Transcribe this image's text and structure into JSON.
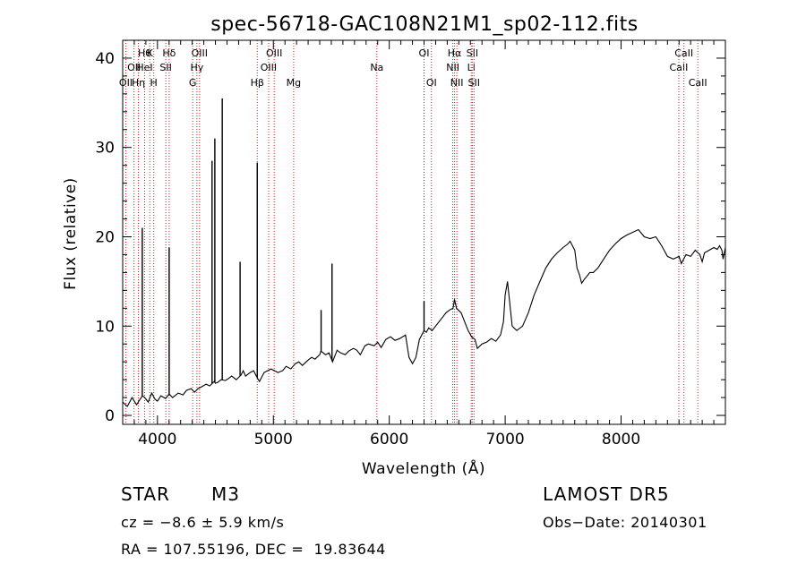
{
  "chart_data": {
    "type": "line",
    "title": "spec-56718-GAC108N21M1_sp02-112.fits",
    "xlabel": "Wavelength (Å)",
    "ylabel": "Flux (relative)",
    "xlim": [
      3700,
      8900
    ],
    "ylim": [
      -1,
      42
    ],
    "xticks": [
      4000,
      5000,
      6000,
      7000,
      8000
    ],
    "yticks": [
      0,
      10,
      20,
      30,
      40
    ],
    "grid": false,
    "series": [
      {
        "x": [
          3700,
          3740,
          3780,
          3820,
          3850,
          3870,
          3890,
          3920,
          3950,
          3980,
          4000,
          4030,
          4070,
          4101,
          4130,
          4180,
          4220,
          4250,
          4290,
          4320,
          4350,
          4380,
          4420,
          4450,
          4490,
          4500,
          4520,
          4550,
          4585,
          4610,
          4640,
          4680,
          4720,
          4740,
          4760,
          4800,
          4830,
          4861,
          4880,
          4920,
          4950,
          4980,
          5010,
          5040,
          5080,
          5110,
          5150,
          5190,
          5220,
          5250,
          5300,
          5330,
          5360,
          5400,
          5410,
          5450,
          5480,
          5510,
          5550,
          5580,
          5620,
          5650,
          5690,
          5720,
          5750,
          5790,
          5820,
          5870,
          5900,
          5930,
          5970,
          6010,
          6050,
          6090,
          6140,
          6170,
          6200,
          6230,
          6260,
          6280,
          6300,
          6320,
          6340,
          6370,
          6400,
          6430,
          6460,
          6490,
          6520,
          6550,
          6563,
          6580,
          6620,
          6650,
          6680,
          6710,
          6740,
          6760,
          6800,
          6840,
          6880,
          6920,
          6960,
          6985,
          7000,
          7020,
          7060,
          7100,
          7150,
          7200,
          7250,
          7300,
          7350,
          7400,
          7450,
          7500,
          7540,
          7560,
          7580,
          7600,
          7620,
          7640,
          7660,
          7680,
          7700,
          7730,
          7760,
          7800,
          7850,
          7900,
          7950,
          8000,
          8050,
          8100,
          8150,
          8200,
          8250,
          8300,
          8350,
          8400,
          8450,
          8500,
          8520,
          8540,
          8560,
          8600,
          8640,
          8680,
          8700,
          8720,
          8760,
          8800,
          8830,
          8850,
          8870,
          8880,
          8900
        ],
        "y": [
          1.5,
          1.0,
          2.0,
          1.2,
          1.8,
          2.2,
          2.0,
          1.5,
          2.5,
          1.8,
          1.6,
          2.2,
          1.9,
          2.4,
          2.0,
          2.5,
          2.3,
          2.8,
          3.0,
          2.6,
          3.0,
          3.2,
          3.5,
          3.3,
          3.8,
          3.6,
          3.7,
          4.0,
          3.9,
          4.1,
          4.4,
          4.0,
          4.5,
          5.0,
          4.4,
          4.8,
          5.0,
          4.2,
          3.8,
          4.8,
          5.0,
          5.2,
          5.0,
          4.8,
          5.0,
          5.5,
          5.2,
          5.8,
          6.0,
          5.6,
          6.2,
          6.5,
          6.3,
          6.8,
          7.2,
          6.8,
          7.0,
          6.0,
          7.3,
          7.0,
          6.8,
          7.2,
          7.5,
          7.3,
          6.8,
          7.8,
          8.0,
          7.8,
          8.2,
          7.6,
          8.5,
          8.8,
          8.4,
          8.6,
          9.0,
          6.5,
          5.8,
          6.5,
          8.5,
          9.0,
          9.5,
          9.3,
          9.8,
          9.5,
          10.0,
          10.5,
          11.0,
          11.5,
          11.8,
          12.0,
          13.0,
          12.0,
          11.5,
          10.5,
          9.5,
          8.8,
          8.5,
          7.5,
          8.0,
          8.2,
          8.6,
          8.3,
          9.0,
          10.5,
          13.5,
          15.0,
          10.0,
          9.5,
          10.0,
          11.5,
          13.5,
          15.0,
          16.5,
          17.5,
          18.2,
          18.8,
          19.2,
          19.5,
          19.0,
          18.5,
          16.5,
          15.8,
          14.8,
          15.2,
          15.5,
          16.0,
          16.0,
          16.5,
          17.5,
          18.5,
          19.2,
          19.8,
          20.2,
          20.5,
          20.8,
          20.0,
          19.8,
          20.0,
          19.0,
          17.8,
          17.5,
          17.8,
          17.0,
          17.5,
          18.0,
          17.8,
          18.5,
          18.0,
          17.2,
          18.2,
          18.5,
          18.8,
          18.6,
          19.0,
          18.5,
          17.5,
          18.8
        ],
        "emission_lines": [
          {
            "x": 3869,
            "y": 21.0
          },
          {
            "x": 4101,
            "y": 18.8
          },
          {
            "x": 4471,
            "y": 28.5
          },
          {
            "x": 4495,
            "y": 31.0
          },
          {
            "x": 4559,
            "y": 35.5
          },
          {
            "x": 4713,
            "y": 17.2
          },
          {
            "x": 4861,
            "y": 28.3
          },
          {
            "x": 5412,
            "y": 11.8
          },
          {
            "x": 5506,
            "y": 17.0
          },
          {
            "x": 6300,
            "y": 12.8
          }
        ]
      }
    ],
    "line_markers": [
      {
        "wave": 3727,
        "label": "OII",
        "row": 2
      },
      {
        "wave": 3798,
        "label": "OII",
        "row": 1
      },
      {
        "wave": 3835,
        "label": "Hη",
        "row": 2
      },
      {
        "wave": 3889,
        "label": "Hθ",
        "row": 0
      },
      {
        "wave": 3889,
        "label": "HeI",
        "row": 1
      },
      {
        "wave": 3934,
        "label": "K",
        "row": 0
      },
      {
        "wave": 3968,
        "label": "H",
        "row": 2
      },
      {
        "wave": 4101,
        "label": "Hδ",
        "row": 0
      },
      {
        "wave": 4072,
        "label": "SII",
        "row": 1
      },
      {
        "wave": 4304,
        "label": "G",
        "row": 2
      },
      {
        "wave": 4340,
        "label": "Hγ",
        "row": 1
      },
      {
        "wave": 4363,
        "label": "OIII",
        "row": 0
      },
      {
        "wave": 4861,
        "label": "Hβ",
        "row": 2
      },
      {
        "wave": 4959,
        "label": "OIII",
        "row": 1
      },
      {
        "wave": 5007,
        "label": "OIII",
        "row": 0
      },
      {
        "wave": 5175,
        "label": "Mg",
        "row": 2
      },
      {
        "wave": 5893,
        "label": "Na",
        "row": 1
      },
      {
        "wave": 6300,
        "label": "OI",
        "row": 0
      },
      {
        "wave": 6364,
        "label": "OI",
        "row": 2
      },
      {
        "wave": 6548,
        "label": "NII",
        "row": 1
      },
      {
        "wave": 6563,
        "label": "Hα",
        "row": 0
      },
      {
        "wave": 6583,
        "label": "NII",
        "row": 2
      },
      {
        "wave": 6707,
        "label": "Li",
        "row": 1
      },
      {
        "wave": 6716,
        "label": "SII",
        "row": 0
      },
      {
        "wave": 6731,
        "label": "SII",
        "row": 2
      },
      {
        "wave": 8498,
        "label": "CaII",
        "row": 1
      },
      {
        "wave": 8542,
        "label": "CaII",
        "row": 0
      },
      {
        "wave": 8662,
        "label": "CaII",
        "row": 2
      }
    ]
  },
  "info": {
    "object_type": "STAR",
    "subclass": "M3",
    "survey": "LAMOST DR5",
    "cz": "cz = −8.6 ± 5.9 km/s",
    "obs_date": "Obs−Date: 20140301",
    "coords": "RA = 107.55196, DEC =  19.83644"
  },
  "colors": {
    "line": "#000000",
    "marker": "#cc2222",
    "axis": "#000000"
  }
}
